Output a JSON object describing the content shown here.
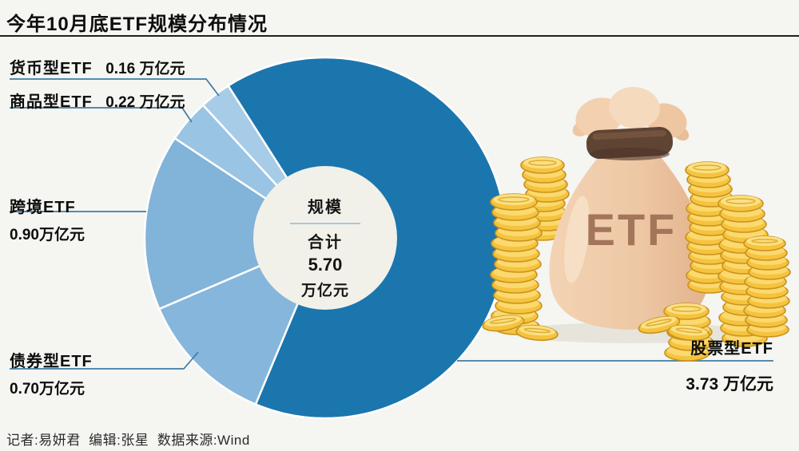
{
  "title": "今年10月底ETF规模分布情况",
  "credits": "记者:易妍君  编辑:张星  数据来源:Wind",
  "bag_text": "ETF",
  "labels": {
    "currency": {
      "name": "货币型ETF",
      "value": "0.16 万亿元"
    },
    "commodity": {
      "name": "商品型ETF",
      "value": "0.22 万亿元"
    },
    "crossborder": {
      "name": "跨境ETF",
      "value": "0.90万亿元"
    },
    "bond": {
      "name": "债券型ETF",
      "value": "0.70万亿元"
    },
    "stock": {
      "name": "股票型ETF",
      "value": "3.73 万亿元"
    }
  },
  "center": {
    "line1": "规模",
    "line2": "合计",
    "value": "5.70",
    "unit": "万亿元"
  },
  "colors": {
    "background": "#f5f5f2",
    "leader_line": "#3e7ca6",
    "title_rule": "#1f1f1f",
    "donut_hole": "#f2f1e9",
    "coin_gold": "#f6c33e",
    "coin_rim": "#c9921e",
    "bag_peach": "#eec8a5",
    "bag_text_brown": "#a3755b"
  },
  "chart_data": {
    "type": "pie",
    "title": "今年10月底ETF规模分布情况",
    "unit": "万亿元",
    "total": 5.7,
    "total_label": "规模 合计 5.70 万亿元",
    "start_angle_deg": 327.5,
    "legend_position": "callout-labels",
    "slices": [
      {
        "key": "stock",
        "label": "股票型ETF",
        "value": 3.73,
        "color": "#1b76ae"
      },
      {
        "key": "bond",
        "label": "债券型ETF",
        "value": 0.7,
        "color": "#86b6db"
      },
      {
        "key": "crossborder",
        "label": "跨境ETF",
        "value": 0.9,
        "color": "#82b3d9"
      },
      {
        "key": "commodity",
        "label": "商品型ETF",
        "value": 0.22,
        "color": "#9ac4e3"
      },
      {
        "key": "currency",
        "label": "货币型ETF",
        "value": 0.16,
        "color": "#a7cce8"
      }
    ]
  }
}
